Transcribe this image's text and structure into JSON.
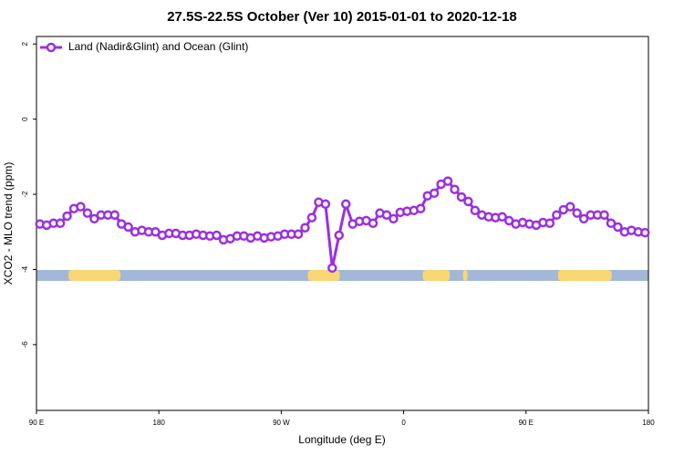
{
  "chart_data": {
    "type": "line",
    "title": "27.5S-22.5S October (Ver 10)   2015-01-01 to 2020-12-18",
    "x_label": "Longitude (deg E)",
    "y_label": "XCO2 - MLO trend (ppm)",
    "x": [
      92.5,
      97.5,
      102.5,
      107.5,
      112.5,
      117.5,
      122.5,
      127.5,
      132.5,
      137.5,
      142.5,
      147.5,
      152.5,
      157.5,
      162.5,
      167.5,
      172.5,
      177.5,
      182.5,
      187.5,
      192.5,
      197.5,
      202.5,
      207.5,
      212.5,
      217.5,
      222.5,
      227.5,
      232.5,
      237.5,
      242.5,
      247.5,
      252.5,
      257.5,
      262.5,
      267.5,
      272.5,
      277.5,
      282.5,
      287.5,
      292.5,
      297.5,
      302.5,
      307.5,
      312.5,
      317.5,
      322.5,
      327.5,
      332.5,
      337.5,
      342.5,
      347.5,
      352.5,
      357.5,
      362.5,
      367.5,
      372.5,
      377.5,
      382.5,
      387.5,
      392.5,
      397.5,
      402.5,
      407.5,
      412.5,
      417.5,
      422.5,
      427.5,
      432.5,
      437.5,
      442.5,
      447.5,
      452.5,
      457.5,
      462.5,
      467.5,
      472.5,
      477.5,
      482.5,
      487.5,
      492.5,
      497.5,
      502.5,
      507.5,
      512.5,
      517.5,
      522.5,
      527.5,
      532.5,
      537.5
    ],
    "series": [
      {
        "name": "Land (Nadir&Glint) and Ocean (Glint)",
        "color": "#9b30e0",
        "values": [
          -2.79,
          -2.82,
          -2.77,
          -2.77,
          -2.58,
          -2.38,
          -2.33,
          -2.5,
          -2.65,
          -2.55,
          -2.55,
          -2.55,
          -2.79,
          -2.87,
          -3.0,
          -2.96,
          -3.0,
          -3.0,
          -3.09,
          -3.04,
          -3.04,
          -3.09,
          -3.09,
          -3.06,
          -3.09,
          -3.11,
          -3.09,
          -3.21,
          -3.18,
          -3.11,
          -3.11,
          -3.16,
          -3.11,
          -3.16,
          -3.13,
          -3.11,
          -3.06,
          -3.06,
          -3.06,
          -2.89,
          -2.62,
          -2.21,
          -2.26,
          -3.96,
          -3.09,
          -2.26,
          -2.79,
          -2.72,
          -2.7,
          -2.77,
          -2.5,
          -2.55,
          -2.65,
          -2.48,
          -2.45,
          -2.43,
          -2.38,
          -2.04,
          -1.97,
          -1.73,
          -1.65,
          -1.87,
          -2.07,
          -2.19,
          -2.43,
          -2.55,
          -2.6,
          -2.62,
          -2.6,
          -2.7,
          -2.79,
          -2.75,
          -2.79,
          -2.82,
          -2.75,
          -2.77,
          -2.55,
          -2.41,
          -2.33,
          -2.5,
          -2.65,
          -2.55,
          -2.55,
          -2.55,
          -2.77,
          -2.87,
          -3.0,
          -2.96,
          -3.0,
          -3.02
        ]
      }
    ],
    "xlim": [
      90,
      540
    ],
    "xticks": [
      {
        "value": 90,
        "label": "90 E"
      },
      180,
      {
        "value": 270,
        "label": "90 W"
      },
      {
        "value": 360,
        "label": "0"
      },
      {
        "value": 450,
        "label": "90 E"
      },
      {
        "value": 540,
        "label": "180"
      }
    ],
    "ylim": [
      -7.75,
      2.2
    ],
    "yticks": [
      2,
      0,
      -2,
      -4,
      -6
    ],
    "legend": "top-left",
    "ocean_color": "#a3b8d8",
    "land_color": "#f8d774",
    "land_bands": [
      [
        113.5,
        151.8
      ],
      [
        289.5,
        313
      ],
      [
        374,
        394
      ],
      [
        403.6,
        407
      ],
      [
        473.5,
        513
      ]
    ]
  }
}
